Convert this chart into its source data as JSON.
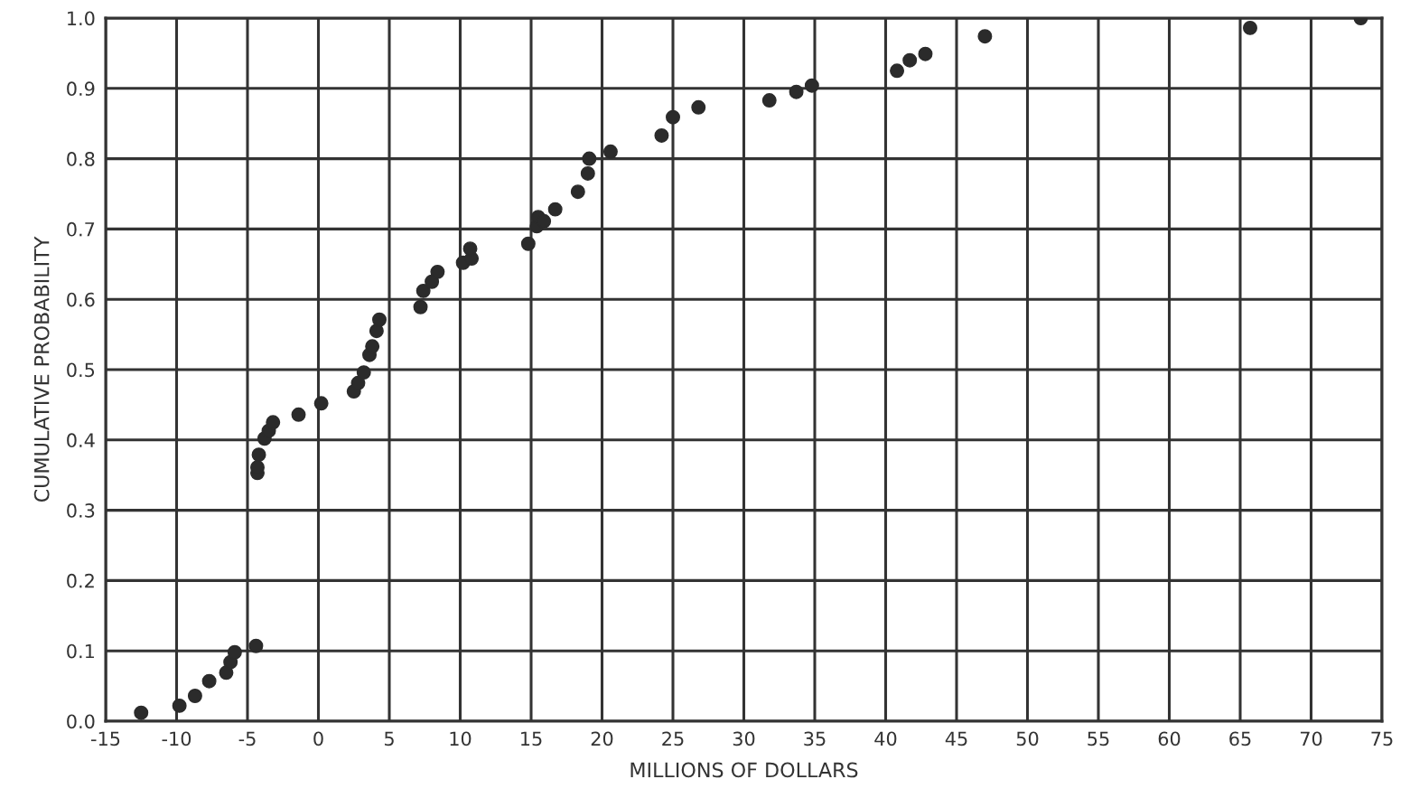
{
  "chart_data": {
    "type": "scatter",
    "xlabel": "MILLIONS OF DOLLARS",
    "ylabel": "CUMULATIVE PROBABILITY",
    "series": [
      {
        "color": "#2b2b2b",
        "x": [
          -12.5,
          -9.8,
          -8.7,
          -7.7,
          -6.5,
          -6.2,
          -5.9,
          -4.4,
          -4.3,
          -4.3,
          -4.2,
          -3.8,
          -3.5,
          -3.2,
          -1.4,
          0.2,
          2.5,
          2.8,
          3.2,
          3.6,
          3.8,
          4.1,
          4.3,
          7.2,
          7.4,
          8.0,
          8.4,
          10.2,
          10.8,
          10.7,
          14.8,
          15.4,
          15.5,
          15.9,
          16.7,
          18.3,
          19.0,
          19.1,
          20.6,
          24.2,
          25.0,
          26.8,
          31.8,
          33.7,
          34.8,
          40.8,
          41.7,
          42.8,
          47.0,
          65.7,
          73.5
        ],
        "values": [
          0.012,
          0.022,
          0.036,
          0.057,
          0.069,
          0.084,
          0.098,
          0.107,
          0.353,
          0.361,
          0.379,
          0.402,
          0.413,
          0.425,
          0.436,
          0.452,
          0.469,
          0.481,
          0.496,
          0.521,
          0.533,
          0.555,
          0.571,
          0.589,
          0.612,
          0.625,
          0.639,
          0.652,
          0.658,
          0.672,
          0.679,
          0.704,
          0.717,
          0.711,
          0.728,
          0.753,
          0.779,
          0.8,
          0.81,
          0.833,
          0.859,
          0.873,
          0.883,
          0.895,
          0.904,
          0.925,
          0.94,
          0.949,
          0.974,
          0.986,
          1.0
        ]
      }
    ],
    "xlim": [
      -15,
      75
    ],
    "xticks": [
      -15,
      -10,
      -5,
      0,
      5,
      10,
      15,
      20,
      25,
      30,
      35,
      40,
      45,
      50,
      55,
      60,
      65,
      70,
      75
    ],
    "ylim": [
      0,
      1
    ],
    "yticks": [
      {
        "value": 0,
        "label": "0.0"
      },
      {
        "value": 0.1,
        "label": "0.1"
      },
      {
        "value": 0.2,
        "label": "0.2"
      },
      {
        "value": 0.3,
        "label": "0.3"
      },
      {
        "value": 0.4,
        "label": "0.4"
      },
      {
        "value": 0.5,
        "label": "0.5"
      },
      {
        "value": 0.6,
        "label": "0.6"
      },
      {
        "value": 0.7,
        "label": "0.7"
      },
      {
        "value": 0.8,
        "label": "0.8"
      },
      {
        "value": 0.9,
        "label": "0.9"
      },
      {
        "value": 1,
        "label": "1.0"
      }
    ],
    "grid": true,
    "marker": "circle"
  }
}
